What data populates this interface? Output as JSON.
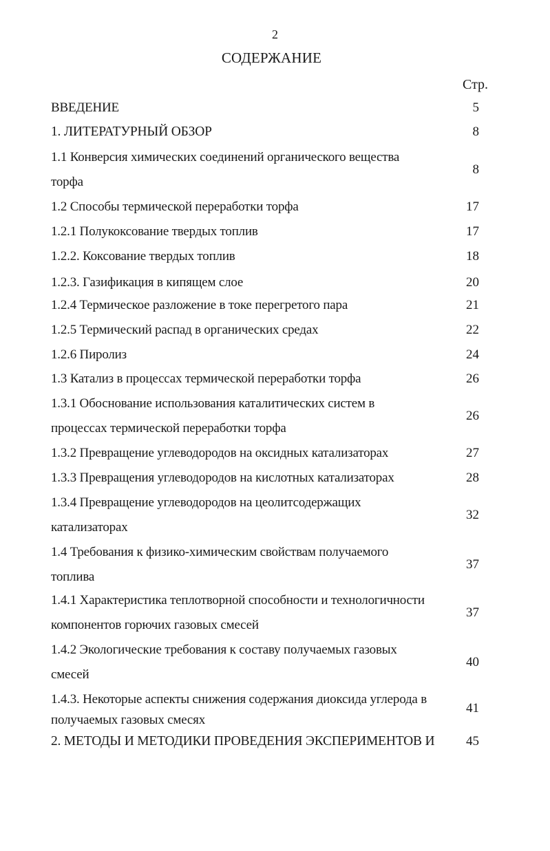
{
  "page_number": "2",
  "title": "СОДЕРЖАНИЕ",
  "page_column_label": "Стр.",
  "entries": [
    {
      "lines": [
        "ВВЕДЕНИЕ"
      ],
      "page": "5"
    },
    {
      "lines": [
        "1. ЛИТЕРАТУРНЫЙ ОБЗОР"
      ],
      "page": "8"
    },
    {
      "lines": [
        "1.1 Конверсия химических соединений органического вещества",
        "торфа"
      ],
      "page": "8"
    },
    {
      "lines": [
        "1.2 Способы термической переработки торфа"
      ],
      "page": "17"
    },
    {
      "lines": [
        "1.2.1 Полукоксование твердых топлив"
      ],
      "page": "17"
    },
    {
      "lines": [
        "1.2.2. Коксование твердых топлив"
      ],
      "page": "18"
    },
    {
      "lines": [
        "1.2.3. Газификация в кипящем слое"
      ],
      "page": "20"
    },
    {
      "lines": [
        "1.2.4 Термическое разложение в токе перегретого пара"
      ],
      "page": "21"
    },
    {
      "lines": [
        "1.2.5 Термический распад в органических средах"
      ],
      "page": "22"
    },
    {
      "lines": [
        "1.2.6 Пиролиз"
      ],
      "page": "24"
    },
    {
      "lines": [
        "1.3 Катализ в процессах термической переработки торфа"
      ],
      "page": "26"
    },
    {
      "lines": [
        "1.3.1 Обоснование использования каталитических систем в",
        "процессах термической переработки торфа"
      ],
      "page": "26"
    },
    {
      "lines": [
        "1.3.2 Превращение углеводородов на оксидных катализаторах"
      ],
      "page": "27"
    },
    {
      "lines": [
        "1.3.3 Превращения углеводородов на кислотных катализаторах"
      ],
      "page": "28"
    },
    {
      "lines": [
        "1.3.4 Превращение углеводородов на цеолитсодержащих",
        "катализаторах"
      ],
      "page": "32"
    },
    {
      "lines": [
        "1.4 Требования к физико-химическим свойствам получаемого",
        "топлива"
      ],
      "page": "37"
    },
    {
      "lines": [
        "1.4.1 Характеристика теплотворной способности и технологичности",
        "компонентов горючих газовых смесей"
      ],
      "page": "37"
    },
    {
      "lines": [
        "1.4.2 Экологические требования к составу получаемых газовых",
        "смесей"
      ],
      "page": "40"
    },
    {
      "lines": [
        "1.4.3. Некоторые аспекты снижения содержания диоксида углерода в",
        "получаемых газовых смесях"
      ],
      "page": "41"
    },
    {
      "lines": [
        "2. МЕТОДЫ И МЕТОДИКИ ПРОВЕДЕНИЯ ЭКСПЕРИМЕНТОВ И"
      ],
      "page": "45"
    }
  ]
}
